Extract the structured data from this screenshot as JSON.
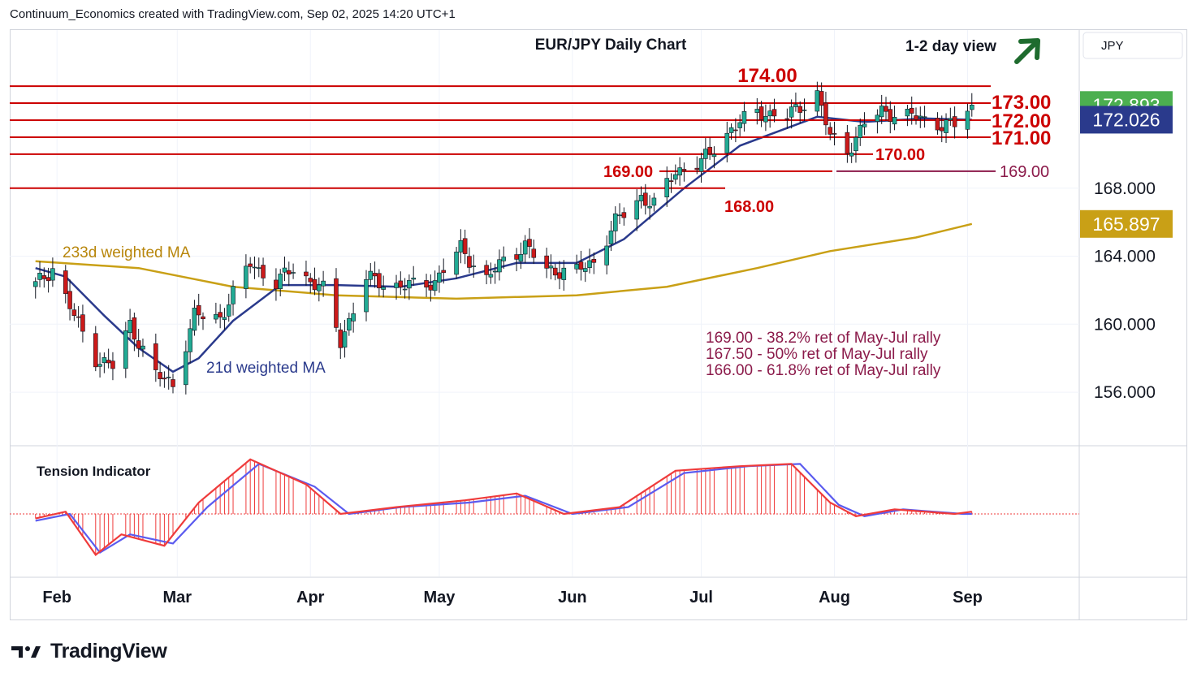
{
  "header": {
    "attribution": "Continuum_Economics created with TradingView.com, Sep 02, 2025 14:20 UTC+1"
  },
  "footer": {
    "brand": "TradingView"
  },
  "colors": {
    "bull": "#22ab94",
    "bear": "#cc1a1a",
    "level_line": "#cc0000",
    "level_text": "#cc0000",
    "ma21": "#2a3a8c",
    "ma233": "#c9a016",
    "fib_text": "#8b1a4a",
    "arrow": "#1e6b2e",
    "last_price_bg": "#4caf50",
    "ma21_badge_bg": "#2a3a8c",
    "ma233_badge_bg": "#c9a016",
    "tension_red": "#ef3b3b",
    "tension_blue": "#5b5bef"
  },
  "chart_data": {
    "type": "candlestick",
    "title": "EUR/JPY Daily Chart",
    "currency": "JPY",
    "view_note": "1-2 day view",
    "view_direction": "up",
    "x_tick_labels": [
      "Feb",
      "Mar",
      "Apr",
      "May",
      "Jun",
      "Jul",
      "Aug",
      "Sep"
    ],
    "x_tick_dates": [
      "2025-02-01",
      "2025-03-01",
      "2025-04-01",
      "2025-05-01",
      "2025-06-01",
      "2025-07-01",
      "2025-08-01",
      "2025-09-01"
    ],
    "y_range": [
      152.9,
      177.3
    ],
    "y_ticks": [
      156.0,
      160.0,
      164.0,
      168.0
    ],
    "last_price": 172.893,
    "ma21_value": 172.026,
    "ma233_value": 165.897,
    "levels": [
      {
        "value": 174.0,
        "label": "174.00"
      },
      {
        "value": 173.0,
        "label": "173.00"
      },
      {
        "value": 172.0,
        "label": "172.00"
      },
      {
        "value": 171.0,
        "label": "171.00"
      },
      {
        "value": 170.0,
        "label": "170.00"
      },
      {
        "value": 169.0,
        "label": "169.00"
      },
      {
        "value": 168.0,
        "label": "168.00"
      }
    ],
    "target_169": {
      "value": 169.0,
      "label": "169.00"
    },
    "ma21_label": "21d weighted MA",
    "ma233_label": "233d weighted MA",
    "fib_notes": [
      "169.00 - 38.2% ret of May-Jul rally",
      "167.50 - 50% ret of May-Jul rally",
      "166.00 - 61.8% ret of May-Jul rally"
    ],
    "ohlc_anchors": [
      {
        "date": "2025-01-27",
        "close": 162.3
      },
      {
        "date": "2025-01-31",
        "close": 163.3
      },
      {
        "date": "2025-02-04",
        "close": 161.0
      },
      {
        "date": "2025-02-10",
        "close": 158.0
      },
      {
        "date": "2025-02-14",
        "close": 157.5
      },
      {
        "date": "2025-02-18",
        "close": 160.0
      },
      {
        "date": "2025-02-24",
        "close": 157.0
      },
      {
        "date": "2025-02-28",
        "close": 156.5
      },
      {
        "date": "2025-03-05",
        "close": 160.5
      },
      {
        "date": "2025-03-11",
        "close": 160.4
      },
      {
        "date": "2025-03-18",
        "close": 163.6
      },
      {
        "date": "2025-03-24",
        "close": 162.4
      },
      {
        "date": "2025-03-28",
        "close": 163.3
      },
      {
        "date": "2025-04-04",
        "close": 162.0
      },
      {
        "date": "2025-04-08",
        "close": 159.0
      },
      {
        "date": "2025-04-14",
        "close": 162.7
      },
      {
        "date": "2025-04-22",
        "close": 162.2
      },
      {
        "date": "2025-04-30",
        "close": 162.5
      },
      {
        "date": "2025-05-06",
        "close": 164.5
      },
      {
        "date": "2025-05-12",
        "close": 162.6
      },
      {
        "date": "2025-05-16",
        "close": 163.8
      },
      {
        "date": "2025-05-21",
        "close": 164.6
      },
      {
        "date": "2025-05-26",
        "close": 163.2
      },
      {
        "date": "2025-06-02",
        "close": 163.1
      },
      {
        "date": "2025-06-06",
        "close": 163.7
      },
      {
        "date": "2025-06-11",
        "close": 166.0
      },
      {
        "date": "2025-06-17",
        "close": 167.5
      },
      {
        "date": "2025-06-20",
        "close": 167.0
      },
      {
        "date": "2025-06-25",
        "close": 169.0
      },
      {
        "date": "2025-07-01",
        "close": 169.5
      },
      {
        "date": "2025-07-08",
        "close": 171.5
      },
      {
        "date": "2025-07-14",
        "close": 172.5
      },
      {
        "date": "2025-07-21",
        "close": 172.2
      },
      {
        "date": "2025-07-28",
        "close": 173.6
      },
      {
        "date": "2025-07-31",
        "close": 171.0
      },
      {
        "date": "2025-08-04",
        "close": 170.2
      },
      {
        "date": "2025-08-08",
        "close": 171.8
      },
      {
        "date": "2025-08-12",
        "close": 172.5
      },
      {
        "date": "2025-08-18",
        "close": 172.3
      },
      {
        "date": "2025-08-25",
        "close": 171.8
      },
      {
        "date": "2025-08-29",
        "close": 171.7
      },
      {
        "date": "2025-09-02",
        "close": 172.893
      }
    ],
    "ma21_series": [
      {
        "date": "2025-01-27",
        "value": 163.3
      },
      {
        "date": "2025-02-03",
        "value": 162.8
      },
      {
        "date": "2025-02-12",
        "value": 160.5
      },
      {
        "date": "2025-02-20",
        "value": 158.6
      },
      {
        "date": "2025-02-28",
        "value": 157.2
      },
      {
        "date": "2025-03-06",
        "value": 158.0
      },
      {
        "date": "2025-03-14",
        "value": 160.2
      },
      {
        "date": "2025-03-25",
        "value": 162.3
      },
      {
        "date": "2025-04-07",
        "value": 162.3
      },
      {
        "date": "2025-04-22",
        "value": 162.2
      },
      {
        "date": "2025-05-05",
        "value": 162.7
      },
      {
        "date": "2025-05-19",
        "value": 163.6
      },
      {
        "date": "2025-06-02",
        "value": 163.6
      },
      {
        "date": "2025-06-13",
        "value": 165.0
      },
      {
        "date": "2025-06-27",
        "value": 168.0
      },
      {
        "date": "2025-07-10",
        "value": 170.5
      },
      {
        "date": "2025-07-28",
        "value": 172.2
      },
      {
        "date": "2025-08-08",
        "value": 171.9
      },
      {
        "date": "2025-08-22",
        "value": 172.1
      },
      {
        "date": "2025-09-02",
        "value": 172.026
      }
    ],
    "ma233_series": [
      {
        "date": "2025-01-27",
        "value": 163.7
      },
      {
        "date": "2025-02-20",
        "value": 163.3
      },
      {
        "date": "2025-03-14",
        "value": 162.2
      },
      {
        "date": "2025-04-07",
        "value": 161.7
      },
      {
        "date": "2025-05-05",
        "value": 161.5
      },
      {
        "date": "2025-06-02",
        "value": 161.7
      },
      {
        "date": "2025-06-23",
        "value": 162.2
      },
      {
        "date": "2025-07-14",
        "value": 163.3
      },
      {
        "date": "2025-07-31",
        "value": 164.3
      },
      {
        "date": "2025-08-20",
        "value": 165.1
      },
      {
        "date": "2025-09-02",
        "value": 165.897
      }
    ],
    "tension": {
      "title": "Tension Indicator",
      "red": [
        {
          "date": "2025-01-27",
          "value": -0.2
        },
        {
          "date": "2025-02-03",
          "value": 0.1
        },
        {
          "date": "2025-02-10",
          "value": -1.8
        },
        {
          "date": "2025-02-16",
          "value": -0.9
        },
        {
          "date": "2025-02-26",
          "value": -1.4
        },
        {
          "date": "2025-03-06",
          "value": 0.5
        },
        {
          "date": "2025-03-18",
          "value": 2.4
        },
        {
          "date": "2025-03-31",
          "value": 1.3
        },
        {
          "date": "2025-04-08",
          "value": 0.0
        },
        {
          "date": "2025-04-21",
          "value": 0.3
        },
        {
          "date": "2025-05-07",
          "value": 0.6
        },
        {
          "date": "2025-05-19",
          "value": 0.9
        },
        {
          "date": "2025-05-30",
          "value": 0.0
        },
        {
          "date": "2025-06-12",
          "value": 0.3
        },
        {
          "date": "2025-06-25",
          "value": 1.9
        },
        {
          "date": "2025-07-10",
          "value": 2.1
        },
        {
          "date": "2025-07-22",
          "value": 2.2
        },
        {
          "date": "2025-07-31",
          "value": 0.5
        },
        {
          "date": "2025-08-06",
          "value": -0.1
        },
        {
          "date": "2025-08-15",
          "value": 0.2
        },
        {
          "date": "2025-08-29",
          "value": 0.0
        },
        {
          "date": "2025-09-02",
          "value": 0.1
        }
      ],
      "blue": [
        {
          "date": "2025-01-27",
          "value": -0.3
        },
        {
          "date": "2025-02-04",
          "value": 0.0
        },
        {
          "date": "2025-02-11",
          "value": -1.7
        },
        {
          "date": "2025-02-18",
          "value": -0.9
        },
        {
          "date": "2025-02-28",
          "value": -1.3
        },
        {
          "date": "2025-03-08",
          "value": 0.3
        },
        {
          "date": "2025-03-20",
          "value": 2.2
        },
        {
          "date": "2025-04-02",
          "value": 1.2
        },
        {
          "date": "2025-04-10",
          "value": 0.0
        },
        {
          "date": "2025-04-22",
          "value": 0.3
        },
        {
          "date": "2025-05-08",
          "value": 0.5
        },
        {
          "date": "2025-05-21",
          "value": 0.8
        },
        {
          "date": "2025-06-01",
          "value": 0.0
        },
        {
          "date": "2025-06-14",
          "value": 0.3
        },
        {
          "date": "2025-06-27",
          "value": 1.8
        },
        {
          "date": "2025-07-12",
          "value": 2.1
        },
        {
          "date": "2025-07-24",
          "value": 2.2
        },
        {
          "date": "2025-08-02",
          "value": 0.4
        },
        {
          "date": "2025-08-08",
          "value": -0.1
        },
        {
          "date": "2025-08-17",
          "value": 0.2
        },
        {
          "date": "2025-08-31",
          "value": 0.0
        },
        {
          "date": "2025-09-02",
          "value": 0.0
        }
      ]
    }
  }
}
